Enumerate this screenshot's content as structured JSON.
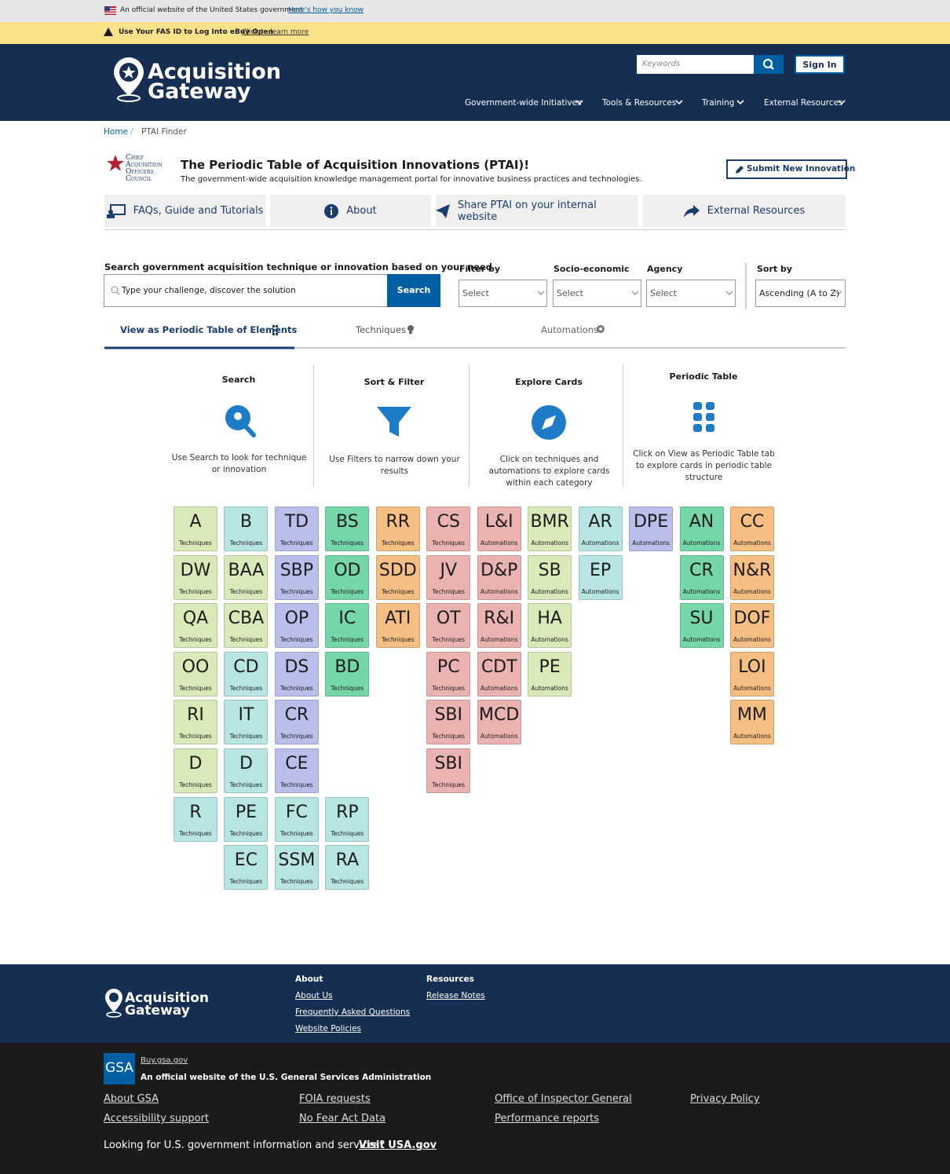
{
  "banner": {
    "official": "An official website of the United States government",
    "how": "Here's how you know"
  },
  "alert": {
    "text": "Use Your FAS ID to Log Into eBuy Open",
    "link": "Click to learn more"
  },
  "header": {
    "logo": [
      "Acquisition",
      "Gateway"
    ],
    "search_placeholder": "Keywords",
    "sign_in": "Sign In",
    "nav": [
      "Government-wide Initiatives",
      "Tools & Resources",
      "Training",
      "External Resources"
    ]
  },
  "breadcrumb": [
    "Home",
    "PTAI Finder"
  ],
  "ptai": {
    "council": [
      "Chief",
      "Acquisition",
      "Officers",
      "Council"
    ],
    "title": "The Periodic Table of Acquisition Innovations (PTAI)!",
    "subtitle": "The government-wide acquisition knowledge management portal for innovative business practices and technologies.",
    "submit": "Submit New Innovation"
  },
  "top_tabs": [
    "FAQs, Guide and Tutorials",
    "About",
    "Share PTAI on your internal website",
    "External Resources"
  ],
  "search": {
    "label": "Search government acquisition technique or innovation based on your need",
    "placeholder": "Type your challenge, discover the solution",
    "button": "Search",
    "filters": [
      {
        "label": "Filter by",
        "value": "Select"
      },
      {
        "label": "Socio-economic",
        "value": "Select"
      },
      {
        "label": "Agency",
        "value": "Select"
      },
      {
        "label": "Sort by",
        "value": "Ascending (A to Z)"
      }
    ]
  },
  "view_tabs": [
    "View as Periodic Table of Elements",
    "Techniques",
    "Automations"
  ],
  "steps": [
    {
      "title": "Search",
      "text": "Use Search to look for technique or innovation"
    },
    {
      "title": "Sort & Filter",
      "text": "Use Filters to narrow down your results"
    },
    {
      "title": "Explore Cards",
      "text": "Click on techniques and automations to explore cards within each category"
    },
    {
      "title": "Periodic Table",
      "text": "Click on View as Periodic Table tab to explore cards in periodic table structure"
    }
  ],
  "table": {
    "columns": [
      [
        {
          "abbr": "A",
          "kind": "Techniques",
          "color": "#d9e9b8"
        },
        {
          "abbr": "DW",
          "kind": "Techniques",
          "color": "#d9e9b8"
        },
        {
          "abbr": "QA",
          "kind": "Techniques",
          "color": "#d9e9b8"
        },
        {
          "abbr": "OO",
          "kind": "Techniques",
          "color": "#d9e9b8"
        },
        {
          "abbr": "RI",
          "kind": "Techniques",
          "color": "#d9e9b8"
        },
        {
          "abbr": "D",
          "kind": "Techniques",
          "color": "#d9e9b8"
        },
        {
          "abbr": "R",
          "kind": "Techniques",
          "color": "#b7e5e3"
        }
      ],
      [
        {
          "abbr": "B",
          "kind": "Techniques",
          "color": "#b7e5e3"
        },
        {
          "abbr": "BAA",
          "kind": "Techniques",
          "color": "#d9e9b8"
        },
        {
          "abbr": "CBA",
          "kind": "Techniques",
          "color": "#d9e9b8"
        },
        {
          "abbr": "CD",
          "kind": "Techniques",
          "color": "#b7e5e3"
        },
        {
          "abbr": "IT",
          "kind": "Techniques",
          "color": "#b7e5e3"
        },
        {
          "abbr": "D",
          "kind": "Techniques",
          "color": "#b7e5e3"
        },
        {
          "abbr": "PE",
          "kind": "Techniques",
          "color": "#b7e5e3"
        },
        {
          "abbr": "EC",
          "kind": "Techniques",
          "color": "#b7e5e3"
        }
      ],
      [
        {
          "abbr": "TD",
          "kind": "Techniques",
          "color": "#b9bfea"
        },
        {
          "abbr": "SBP",
          "kind": "Techniques",
          "color": "#b9bfea"
        },
        {
          "abbr": "OP",
          "kind": "Techniques",
          "color": "#b9bfea"
        },
        {
          "abbr": "DS",
          "kind": "Techniques",
          "color": "#b9bfea"
        },
        {
          "abbr": "CR",
          "kind": "Techniques",
          "color": "#b9bfea"
        },
        {
          "abbr": "CE",
          "kind": "Techniques",
          "color": "#b9bfea"
        },
        {
          "abbr": "FC",
          "kind": "Techniques",
          "color": "#b7e5e3"
        },
        {
          "abbr": "SSM",
          "kind": "Techniques",
          "color": "#b7e5e3"
        }
      ],
      [
        {
          "abbr": "BS",
          "kind": "Techniques",
          "color": "#75d6a8"
        },
        {
          "abbr": "OD",
          "kind": "Techniques",
          "color": "#75d6a8"
        },
        {
          "abbr": "IC",
          "kind": "Techniques",
          "color": "#75d6a8"
        },
        {
          "abbr": "BD",
          "kind": "Techniques",
          "color": "#75d6a8"
        },
        null,
        null,
        {
          "abbr": "RP",
          "kind": "Techniques",
          "color": "#b7e5e3"
        },
        {
          "abbr": "RA",
          "kind": "Techniques",
          "color": "#b7e5e3"
        }
      ],
      [
        {
          "abbr": "RR",
          "kind": "Techniques",
          "color": "#f5be82"
        },
        {
          "abbr": "SDD",
          "kind": "Techniques",
          "color": "#f5be82"
        },
        {
          "abbr": "ATI",
          "kind": "Techniques",
          "color": "#f5be82"
        }
      ],
      [
        {
          "abbr": "CS",
          "kind": "Techniques",
          "color": "#eab3b1"
        },
        {
          "abbr": "JV",
          "kind": "Techniques",
          "color": "#eab3b1"
        },
        {
          "abbr": "OT",
          "kind": "Techniques",
          "color": "#eab3b1"
        },
        {
          "abbr": "PC",
          "kind": "Techniques",
          "color": "#eab3b1"
        },
        {
          "abbr": "SBI",
          "kind": "Techniques",
          "color": "#eab3b1"
        },
        {
          "abbr": "SBI",
          "kind": "Techniques",
          "color": "#eab3b1"
        }
      ],
      [
        {
          "abbr": "L&I",
          "kind": "Automations",
          "color": "#eab3b1"
        },
        {
          "abbr": "D&P",
          "kind": "Automations",
          "color": "#eab3b1"
        },
        {
          "abbr": "R&I",
          "kind": "Automations",
          "color": "#eab3b1"
        },
        {
          "abbr": "CDT",
          "kind": "Automations",
          "color": "#eab3b1"
        },
        {
          "abbr": "MCD",
          "kind": "Automations",
          "color": "#eab3b1"
        }
      ],
      [
        {
          "abbr": "BMR",
          "kind": "Automations",
          "color": "#d9e9b8"
        },
        {
          "abbr": "SB",
          "kind": "Automations",
          "color": "#d9e9b8"
        },
        {
          "abbr": "HA",
          "kind": "Automations",
          "color": "#d9e9b8"
        },
        {
          "abbr": "PE",
          "kind": "Automations",
          "color": "#d9e9b8"
        }
      ],
      [
        {
          "abbr": "AR",
          "kind": "Automations",
          "color": "#b7e5e3"
        },
        {
          "abbr": "EP",
          "kind": "Automations",
          "color": "#b7e5e3"
        }
      ],
      [
        {
          "abbr": "DPE",
          "kind": "Automations",
          "color": "#b9bfea"
        }
      ],
      [
        {
          "abbr": "AN",
          "kind": "Automations",
          "color": "#75d6a8"
        },
        {
          "abbr": "CR",
          "kind": "Automations",
          "color": "#75d6a8"
        },
        {
          "abbr": "SU",
          "kind": "Automations",
          "color": "#75d6a8"
        }
      ],
      [
        {
          "abbr": "CC",
          "kind": "Automations",
          "color": "#f5be82"
        },
        {
          "abbr": "N&R",
          "kind": "Automations",
          "color": "#f5be82"
        },
        {
          "abbr": "DOF",
          "kind": "Automations",
          "color": "#f5be82"
        },
        {
          "abbr": "LOI",
          "kind": "Automations",
          "color": "#f5be82"
        },
        {
          "abbr": "MM",
          "kind": "Automations",
          "color": "#f5be82"
        }
      ]
    ]
  },
  "footer": {
    "logo": [
      "Acquisition",
      "Gateway"
    ],
    "sections": [
      {
        "title": "About",
        "links": [
          "About Us",
          "Frequently Asked Questions",
          "Website Policies"
        ]
      },
      {
        "title": "Resources",
        "links": [
          "Release Notes"
        ]
      }
    ],
    "gsa": {
      "badge": "GSA",
      "site": "Buy.gsa.gov",
      "official": "An official website of the U.S. General Services Administration",
      "links": [
        "About GSA",
        "Accessibility support",
        "FOIA requests",
        "No Fear Act Data",
        "Office of Inspector General",
        "Performance reports",
        "Privacy Policy"
      ],
      "looking": "Looking for U.S. government information and services?",
      "visit": "Visit USA.gov"
    }
  }
}
